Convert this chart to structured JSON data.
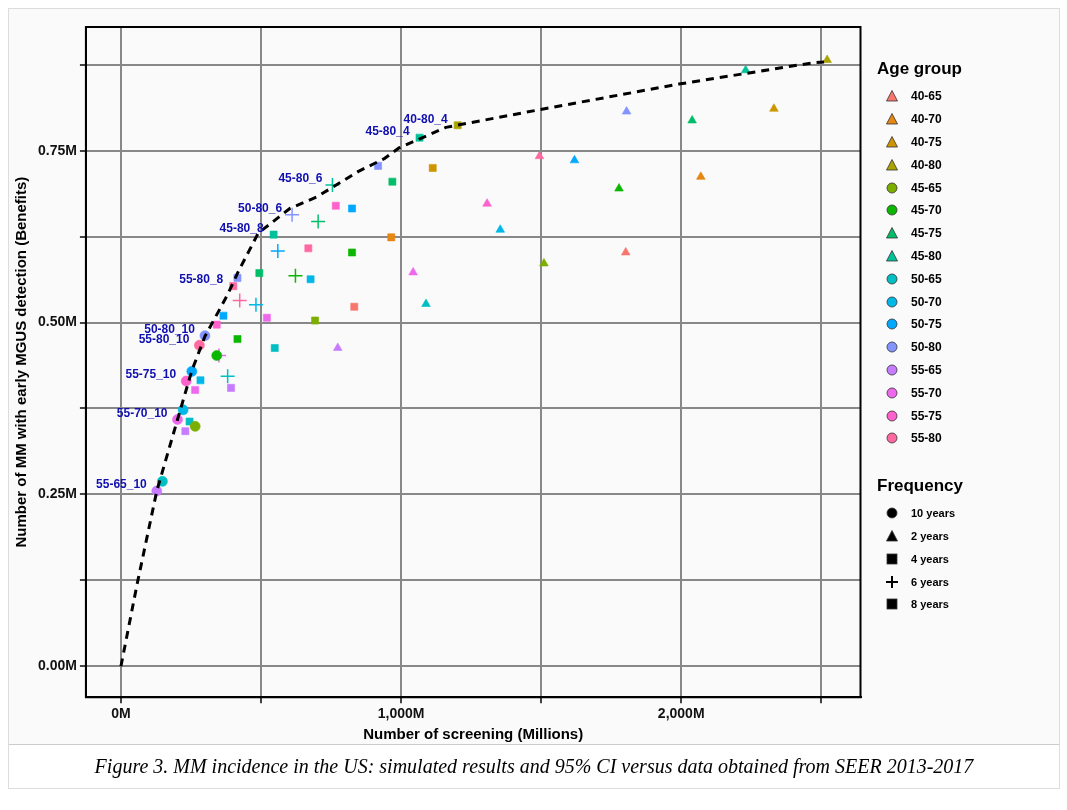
{
  "chart_data": {
    "type": "scatter",
    "xlabel": "Number of screening (Millions)",
    "ylabel": "Number of MM with early MGUS detection (Benefits)",
    "legend_title": "Age group",
    "legend": "right",
    "grid": true,
    "xlim": [
      -125,
      2640
    ],
    "ylim": [
      -0.045,
      0.93
    ],
    "xticks": [
      {
        "value": 0,
        "label": "0M"
      },
      {
        "value": 500,
        "label": null
      },
      {
        "value": 1000,
        "label": "1,000M"
      },
      {
        "value": 1500,
        "label": null
      },
      {
        "value": 2000,
        "label": "2,000M"
      },
      {
        "value": 2500,
        "label": null
      }
    ],
    "yticks": [
      {
        "value": 0,
        "label": "0.00M"
      },
      {
        "value": 0.125,
        "label": null
      },
      {
        "value": 0.25,
        "label": "0.25M"
      },
      {
        "value": 0.375,
        "label": null
      },
      {
        "value": 0.5,
        "label": "0.50M"
      },
      {
        "value": 0.625,
        "label": null
      },
      {
        "value": 0.75,
        "label": "0.75M"
      },
      {
        "value": 0.875,
        "label": null
      }
    ],
    "series": [
      {
        "type": "line",
        "color": "#000000",
        "line_style": "dashed",
        "marker": "none",
        "x": [
          0,
          58,
          128,
          202,
          253,
          300,
          380,
          420,
          490,
          603,
          700,
          848,
          942,
          992,
          1160,
          1498,
          1992,
          2471,
          2510
        ],
        "values": [
          0,
          0.12,
          0.255,
          0.359,
          0.43,
          0.48,
          0.54,
          0.575,
          0.63,
          0.666,
          0.683,
          0.72,
          0.739,
          0.754,
          0.784,
          0.81,
          0.847,
          0.878,
          0.879
        ]
      },
      {
        "name": "40-65",
        "color": "#F8766D",
        "marker": "triangle",
        "x": [
          1802
        ],
        "values": [
          0.602
        ]
      },
      {
        "color": "#F8766D",
        "marker": "square",
        "x": [
          833
        ],
        "values": [
          0.523
        ]
      },
      {
        "name": "40-70",
        "color": "#E68613",
        "marker": "triangle",
        "x": [
          2070
        ],
        "values": [
          0.712
        ]
      },
      {
        "color": "#E68613",
        "marker": "square",
        "x": [
          965
        ],
        "values": [
          0.624
        ]
      },
      {
        "name": "40-75",
        "color": "#CD9600",
        "marker": "triangle",
        "x": [
          2331
        ],
        "values": [
          0.811
        ]
      },
      {
        "color": "#CD9600",
        "marker": "square",
        "x": [
          1113
        ],
        "values": [
          0.725
        ]
      },
      {
        "name": "40-80",
        "color": "#ABA300",
        "marker": "triangle",
        "x": [
          2521
        ],
        "values": [
          0.882
        ]
      },
      {
        "color": "#ABA300",
        "marker": "square",
        "x": [
          1202
        ],
        "values": [
          0.787
        ]
      },
      {
        "name": "45-65",
        "color": "#7CAE00",
        "marker": "circle",
        "x": [
          265
        ],
        "values": [
          0.349
        ]
      },
      {
        "color": "#7CAE00",
        "marker": "triangle",
        "x": [
          1510
        ],
        "values": [
          0.586
        ]
      },
      {
        "color": "#7CAE00",
        "marker": "square",
        "x": [
          693
        ],
        "values": [
          0.503
        ]
      },
      {
        "name": "45-70",
        "color": "#0CB702",
        "marker": "circle",
        "x": [
          342
        ],
        "values": [
          0.452
        ]
      },
      {
        "color": "#0CB702",
        "marker": "triangle",
        "x": [
          1778
        ],
        "values": [
          0.695
        ]
      },
      {
        "color": "#0CB702",
        "marker": "square",
        "x": [
          825,
          416
        ],
        "values": [
          0.602,
          0.476
        ]
      },
      {
        "color": "#0CB702",
        "marker": "cross",
        "x": [
          623
        ],
        "values": [
          0.568
        ]
      },
      {
        "name": "45-75",
        "color": "#00BE67",
        "marker": "triangle",
        "x": [
          2039
        ],
        "values": [
          0.794
        ]
      },
      {
        "color": "#00BE67",
        "marker": "square",
        "x": [
          969,
          494
        ],
        "values": [
          0.705,
          0.572
        ]
      },
      {
        "color": "#00BE67",
        "marker": "cross",
        "x": [
          704
        ],
        "values": [
          0.647
        ]
      },
      {
        "name": "45-80",
        "color": "#00C19A",
        "marker": "triangle",
        "x": [
          2230
        ],
        "values": [
          0.867
        ]
      },
      {
        "color": "#00C19A",
        "marker": "square",
        "x": [
          1066,
          545
        ],
        "values": [
          0.769,
          0.628
        ]
      },
      {
        "color": "#00C19A",
        "marker": "cross",
        "x": [
          755
        ],
        "values": [
          0.7
        ]
      },
      {
        "name": "50-65",
        "color": "#00BFC4",
        "marker": "circle",
        "x": [
          148
        ],
        "values": [
          0.269
        ]
      },
      {
        "color": "#00BFC4",
        "marker": "triangle",
        "x": [
          1089
        ],
        "values": [
          0.527
        ]
      },
      {
        "color": "#00BFC4",
        "marker": "square",
        "x": [
          549,
          245
        ],
        "values": [
          0.463,
          0.356
        ]
      },
      {
        "color": "#00BFC4",
        "marker": "cross",
        "x": [
          381
        ],
        "values": [
          0.422
        ]
      },
      {
        "name": "50-70",
        "color": "#00B8E7",
        "marker": "circle",
        "x": [
          222
        ],
        "values": [
          0.373
        ]
      },
      {
        "color": "#00B8E7",
        "marker": "triangle",
        "x": [
          1354
        ],
        "values": [
          0.635
        ]
      },
      {
        "color": "#00B8E7",
        "marker": "square",
        "x": [
          677,
          284
        ],
        "values": [
          0.563,
          0.416
        ]
      },
      {
        "color": "#00B8E7",
        "marker": "cross",
        "x": [
          482
        ],
        "values": [
          0.526
        ]
      },
      {
        "name": "50-75",
        "color": "#00A9FF",
        "marker": "circle",
        "x": [
          253
        ],
        "values": [
          0.429
        ]
      },
      {
        "color": "#00A9FF",
        "marker": "triangle",
        "x": [
          1619
        ],
        "values": [
          0.736
        ]
      },
      {
        "color": "#00A9FF",
        "marker": "square",
        "x": [
          825,
          366
        ],
        "values": [
          0.666,
          0.51
        ]
      },
      {
        "color": "#00A9FF",
        "marker": "cross",
        "x": [
          560
        ],
        "values": [
          0.604
        ]
      },
      {
        "name": "50-80",
        "color": "#8494FF",
        "marker": "circle",
        "x": [
          300
        ],
        "values": [
          0.481
        ]
      },
      {
        "color": "#8494FF",
        "marker": "triangle",
        "x": [
          1805
        ],
        "values": [
          0.807
        ]
      },
      {
        "color": "#8494FF",
        "marker": "square",
        "x": [
          918,
          416
        ],
        "values": [
          0.728,
          0.565
        ]
      },
      {
        "color": "#8494FF",
        "marker": "cross",
        "x": [
          611
        ],
        "values": [
          0.657
        ]
      },
      {
        "name": "55-65",
        "color": "#C77CFF",
        "marker": "circle",
        "x": [
          128
        ],
        "values": [
          0.255
        ]
      },
      {
        "color": "#C77CFF",
        "marker": "triangle",
        "x": [
          774
        ],
        "values": [
          0.463
        ]
      },
      {
        "color": "#C77CFF",
        "marker": "square",
        "x": [
          393,
          230
        ],
        "values": [
          0.405,
          0.342
        ]
      },
      {
        "name": "55-70",
        "color": "#ED68ED",
        "marker": "circle",
        "x": [
          202
        ],
        "values": [
          0.359
        ]
      },
      {
        "color": "#ED68ED",
        "marker": "triangle",
        "x": [
          1043
        ],
        "values": [
          0.573
        ]
      },
      {
        "color": "#ED68ED",
        "marker": "square",
        "x": [
          521,
          265
        ],
        "values": [
          0.507,
          0.402
        ]
      },
      {
        "color": "#ED68ED",
        "marker": "cross",
        "x": [
          350
        ],
        "values": [
          0.452
        ]
      },
      {
        "name": "55-75",
        "color": "#FF61CC",
        "marker": "circle",
        "x": [
          233
        ],
        "values": [
          0.415
        ]
      },
      {
        "color": "#FF61CC",
        "marker": "triangle",
        "x": [
          1307
        ],
        "values": [
          0.673
        ]
      },
      {
        "color": "#FF61CC",
        "marker": "square",
        "x": [
          767,
          342
        ],
        "values": [
          0.67,
          0.497
        ]
      },
      {
        "name": "55-80",
        "color": "#FF68A1",
        "marker": "circle",
        "x": [
          280
        ],
        "values": [
          0.467
        ]
      },
      {
        "color": "#FF68A1",
        "marker": "triangle",
        "x": [
          1494
        ],
        "values": [
          0.742
        ]
      },
      {
        "color": "#FF68A1",
        "marker": "square",
        "x": [
          669,
          401
        ],
        "values": [
          0.608,
          0.553
        ]
      },
      {
        "color": "#FF68A1",
        "marker": "cross",
        "x": [
          424
        ],
        "values": [
          0.532
        ]
      },
      {
        "name": "10 years",
        "color": "#000000",
        "marker": "circle"
      },
      {
        "name": "2 years",
        "color": "#000000",
        "marker": "triangle"
      },
      {
        "name": "4 years",
        "color": "#000000",
        "marker": "square"
      },
      {
        "name": "6 years",
        "color": "#000000",
        "marker": "cross"
      },
      {
        "name": "8 years",
        "color": "#000000",
        "marker": "square"
      }
    ],
    "annotations": [
      "Frequency",
      {
        "text": "40-80_4",
        "x": 1202,
        "y": 0.787
      },
      {
        "text": "45-80_4",
        "x": 1066,
        "y": 0.769
      },
      {
        "text": "45-80_6",
        "x": 755,
        "y": 0.7
      },
      {
        "text": "50-80_6",
        "x": 611,
        "y": 0.657
      },
      {
        "text": "45-80_8",
        "x": 545,
        "y": 0.628
      },
      {
        "text": "55-80_8",
        "x": 401,
        "y": 0.553
      },
      {
        "text": "50-80_10",
        "x": 300,
        "y": 0.481
      },
      {
        "text": "55-80_10",
        "x": 280,
        "y": 0.467
      },
      {
        "text": "55-75_10",
        "x": 233,
        "y": 0.415
      },
      {
        "text": "55-70_10",
        "x": 202,
        "y": 0.359
      },
      {
        "text": "55-65_10",
        "x": 128,
        "y": 0.255
      },
      "Figure 3. MM incidence in the US: simulated results and 95% CI versus data obtained from SEER 2013-2017"
    ]
  }
}
